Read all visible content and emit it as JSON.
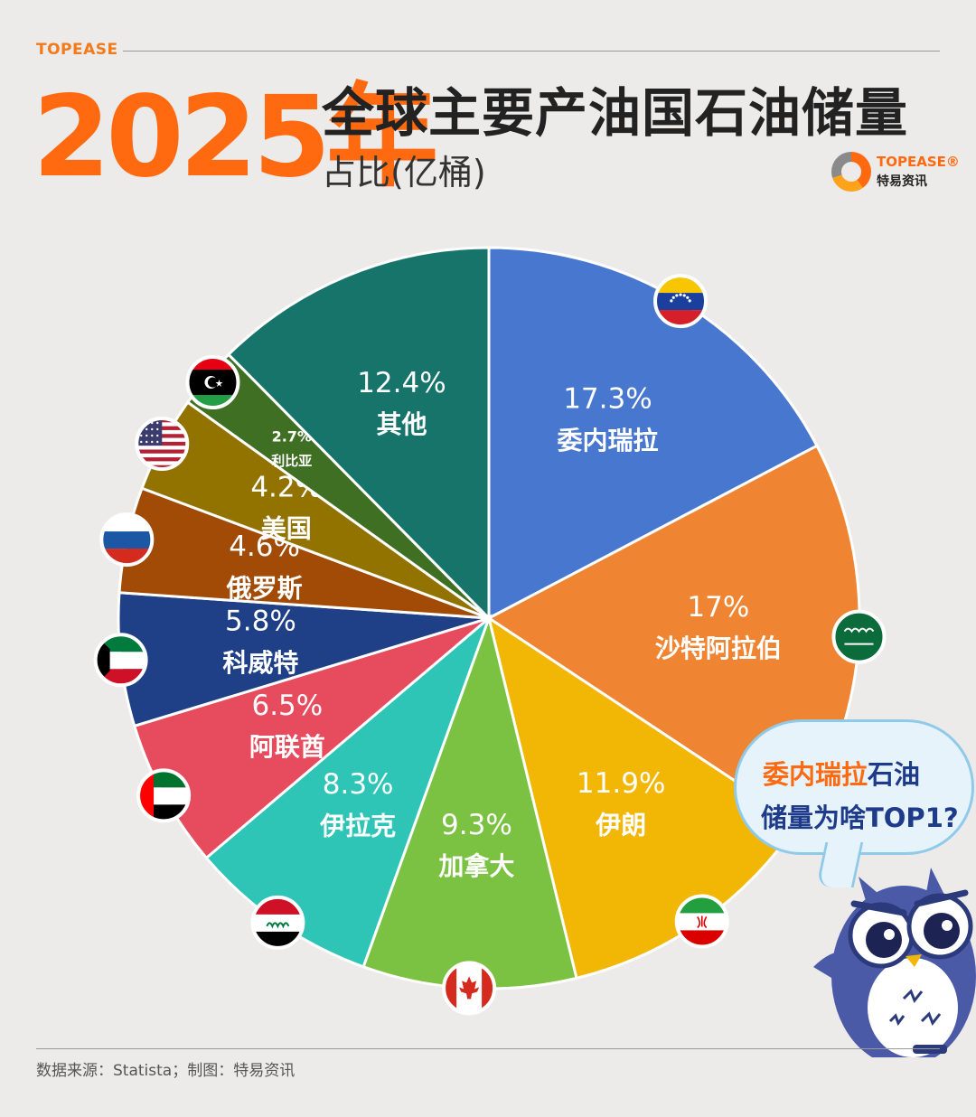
{
  "header": {
    "brand": "TOPEASE",
    "year": "2025年",
    "title": "全球主要产油国石油储量",
    "subtitle": "占比(亿桶)",
    "logo_en": "TOPEASE®",
    "logo_cn": "特易资讯"
  },
  "bubble": {
    "line1_highlight": "委内瑞拉",
    "line1_rest": "石油",
    "line2": "储量为啥TOP1?"
  },
  "footer": {
    "source": "数据来源：Statista；制图：特易资讯"
  },
  "chart_data": {
    "type": "pie",
    "title": "全球主要产油国石油储量占比(亿桶)",
    "slices": [
      {
        "label": "委内瑞拉",
        "value": 17.3,
        "display": "17.3%",
        "color": "#4877cf",
        "flag": "venezuela-flag"
      },
      {
        "label": "沙特阿拉伯",
        "value": 17.0,
        "display": "17%",
        "color": "#ef8532",
        "flag": "saudi-arabia-flag"
      },
      {
        "label": "伊朗",
        "value": 11.9,
        "display": "11.9%",
        "color": "#f2b705",
        "flag": "iran-flag"
      },
      {
        "label": "加拿大",
        "value": 9.3,
        "display": "9.3%",
        "color": "#7bc142",
        "flag": "canada-flag"
      },
      {
        "label": "伊拉克",
        "value": 8.3,
        "display": "8.3%",
        "color": "#2ec4b6",
        "flag": "iraq-flag"
      },
      {
        "label": "阿联酋",
        "value": 6.5,
        "display": "6.5%",
        "color": "#e74c5e",
        "flag": "uae-flag"
      },
      {
        "label": "科威特",
        "value": 5.8,
        "display": "5.8%",
        "color": "#1f3f86",
        "flag": "kuwait-flag"
      },
      {
        "label": "俄罗斯",
        "value": 4.6,
        "display": "4.6%",
        "color": "#a14b07",
        "flag": "russia-flag"
      },
      {
        "label": "美国",
        "value": 4.2,
        "display": "4.2%",
        "color": "#927300",
        "flag": "usa-flag"
      },
      {
        "label": "利比亚",
        "value": 2.7,
        "display": "2.7%",
        "color": "#3f6f22",
        "flag": "libya-flag"
      },
      {
        "label": "其他",
        "value": 12.4,
        "display": "12.4%",
        "color": "#17746a",
        "flag": ""
      }
    ]
  }
}
